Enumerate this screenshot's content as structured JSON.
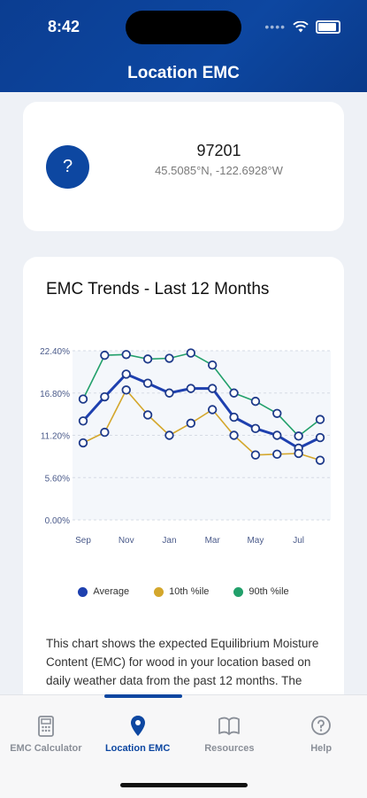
{
  "status": {
    "time": "8:42"
  },
  "header": {
    "title": "Location EMC"
  },
  "location": {
    "icon_text": "?",
    "zip": "97201",
    "coords": "45.5085°N, -122.6928°W"
  },
  "chart": {
    "title": "EMC Trends - Last 12 Months"
  },
  "chart_data": {
    "type": "line",
    "x": [
      "Sep",
      "Oct",
      "Nov",
      "Dec",
      "Jan",
      "Feb",
      "Mar",
      "Apr",
      "May",
      "Jun",
      "Jul",
      "Aug"
    ],
    "x_tick_labels": [
      "Sep",
      "Nov",
      "Jan",
      "Mar",
      "May",
      "Jul"
    ],
    "y_tick_labels": [
      "0.00%",
      "5.60%",
      "11.20%",
      "16.80%",
      "22.40%"
    ],
    "ylim": [
      0,
      22.4
    ],
    "grid": true,
    "legend_position": "bottom",
    "series": [
      {
        "name": "Average",
        "color": "#1e40af",
        "values": [
          13.1,
          16.3,
          19.3,
          18.1,
          16.8,
          17.4,
          17.4,
          13.6,
          12.1,
          11.2,
          9.5,
          10.9
        ]
      },
      {
        "name": "10th %ile",
        "color": "#d4a72c",
        "values": [
          10.2,
          11.6,
          17.2,
          13.9,
          11.2,
          12.8,
          14.6,
          11.2,
          8.6,
          8.7,
          8.8,
          7.9
        ]
      },
      {
        "name": "90th %ile",
        "color": "#22a06b",
        "values": [
          16.0,
          21.8,
          21.9,
          21.3,
          21.4,
          22.1,
          20.5,
          16.8,
          15.7,
          14.1,
          11.1,
          13.3
        ]
      }
    ]
  },
  "legend": {
    "average": "Average",
    "p10": "10th %ile",
    "p90": "90th %ile"
  },
  "description": "This chart shows the expected Equilibrium Moisture Content (EMC) for wood in your location based on daily weather data from the past 12 months. The bold line represents the",
  "tabs": [
    {
      "label": "EMC Calculator",
      "icon": "calculator-icon"
    },
    {
      "label": "Location EMC",
      "icon": "location-pin-icon"
    },
    {
      "label": "Resources",
      "icon": "book-icon"
    },
    {
      "label": "Help",
      "icon": "help-icon"
    }
  ],
  "colors": {
    "brand": "#0d47a1",
    "average": "#1e40af",
    "p10": "#d4a72c",
    "p90": "#22a06b"
  }
}
